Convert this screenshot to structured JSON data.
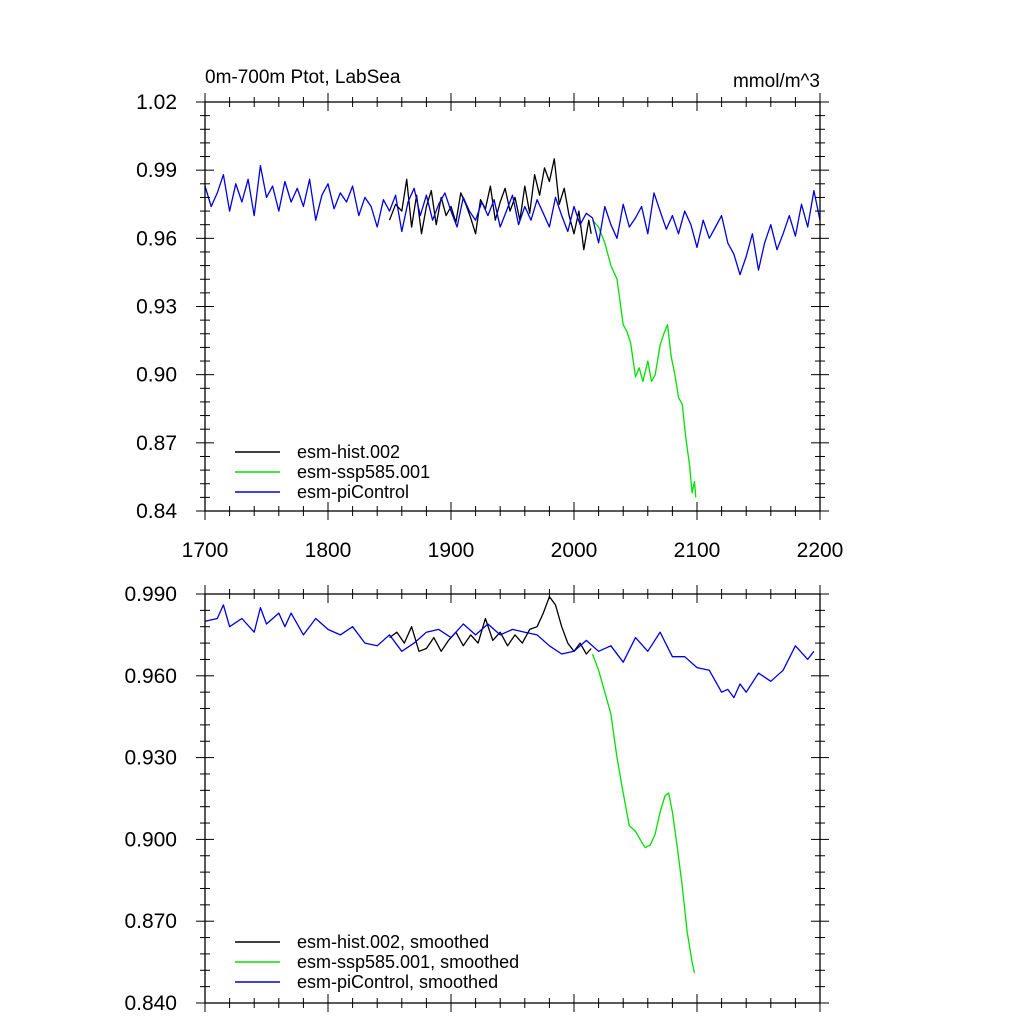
{
  "colors": {
    "hist": "#000000",
    "ssp": "#00e000",
    "pic": "#0000dd",
    "axis": "#000000"
  },
  "chart_data": [
    {
      "type": "line",
      "title": "0m-700m Ptot, LabSea",
      "units": "mmol/m^3",
      "xlim": [
        1700,
        2200
      ],
      "ylim": [
        0.84,
        1.02
      ],
      "xticks": [
        1700,
        1800,
        1900,
        2000,
        2100,
        2200
      ],
      "xtick_labels": [
        "1700",
        "1800",
        "1900",
        "2000",
        "2100",
        "2200"
      ],
      "yticks": [
        0.84,
        0.87,
        0.9,
        0.93,
        0.96,
        0.99,
        1.02
      ],
      "ytick_labels": [
        "0.84",
        "0.87",
        "0.90",
        "0.93",
        "0.96",
        "0.99",
        "1.02"
      ],
      "legend_position": "bottom-left",
      "series": [
        {
          "key": "hist",
          "name": "esm-hist.002",
          "color": "hist",
          "x": [
            1850,
            1855,
            1860,
            1864,
            1868,
            1872,
            1876,
            1880,
            1884,
            1888,
            1892,
            1896,
            1900,
            1904,
            1908,
            1912,
            1916,
            1920,
            1924,
            1928,
            1932,
            1936,
            1940,
            1944,
            1948,
            1952,
            1956,
            1960,
            1964,
            1968,
            1972,
            1976,
            1980,
            1984,
            1988,
            1992,
            1996,
            2000,
            2004,
            2008,
            2012,
            2014
          ],
          "y": [
            0.968,
            0.975,
            0.972,
            0.986,
            0.965,
            0.979,
            0.962,
            0.974,
            0.981,
            0.966,
            0.978,
            0.97,
            0.974,
            0.967,
            0.98,
            0.975,
            0.969,
            0.962,
            0.977,
            0.973,
            0.983,
            0.968,
            0.976,
            0.982,
            0.972,
            0.978,
            0.968,
            0.983,
            0.971,
            0.988,
            0.979,
            0.991,
            0.985,
            0.995,
            0.975,
            0.982,
            0.97,
            0.962,
            0.972,
            0.955,
            0.968,
            0.962
          ]
        },
        {
          "key": "ssp",
          "name": "esm-ssp585.001",
          "color": "ssp",
          "x": [
            2015,
            2020,
            2025,
            2030,
            2035,
            2040,
            2043,
            2046,
            2050,
            2053,
            2056,
            2060,
            2063,
            2066,
            2070,
            2073,
            2076,
            2079,
            2082,
            2085,
            2088,
            2091,
            2094,
            2096,
            2098,
            2099
          ],
          "y": [
            0.968,
            0.965,
            0.958,
            0.948,
            0.942,
            0.922,
            0.919,
            0.914,
            0.899,
            0.903,
            0.897,
            0.906,
            0.897,
            0.9,
            0.913,
            0.918,
            0.922,
            0.908,
            0.9,
            0.89,
            0.887,
            0.872,
            0.86,
            0.848,
            0.853,
            0.846
          ]
        },
        {
          "key": "pic",
          "name": "esm-piControl",
          "color": "pic",
          "x": [
            1700,
            1705,
            1710,
            1715,
            1720,
            1725,
            1730,
            1735,
            1740,
            1745,
            1750,
            1755,
            1760,
            1765,
            1770,
            1775,
            1780,
            1785,
            1790,
            1795,
            1800,
            1805,
            1810,
            1815,
            1820,
            1825,
            1830,
            1835,
            1840,
            1845,
            1850,
            1855,
            1860,
            1865,
            1870,
            1875,
            1880,
            1885,
            1890,
            1895,
            1900,
            1905,
            1910,
            1915,
            1920,
            1925,
            1930,
            1935,
            1940,
            1945,
            1950,
            1955,
            1960,
            1965,
            1970,
            1975,
            1980,
            1985,
            1990,
            1995,
            2000,
            2005,
            2010,
            2015,
            2020,
            2025,
            2030,
            2035,
            2040,
            2045,
            2050,
            2055,
            2060,
            2065,
            2070,
            2075,
            2080,
            2085,
            2090,
            2095,
            2100,
            2105,
            2110,
            2115,
            2120,
            2125,
            2130,
            2135,
            2140,
            2145,
            2150,
            2155,
            2160,
            2165,
            2170,
            2175,
            2180,
            2185,
            2190,
            2195,
            2200
          ],
          "y": [
            0.983,
            0.974,
            0.98,
            0.988,
            0.972,
            0.984,
            0.976,
            0.986,
            0.97,
            0.992,
            0.978,
            0.983,
            0.972,
            0.985,
            0.976,
            0.982,
            0.974,
            0.986,
            0.968,
            0.979,
            0.984,
            0.973,
            0.98,
            0.976,
            0.983,
            0.97,
            0.978,
            0.974,
            0.965,
            0.977,
            0.972,
            0.979,
            0.963,
            0.976,
            0.982,
            0.97,
            0.979,
            0.968,
            0.975,
            0.98,
            0.972,
            0.965,
            0.978,
            0.972,
            0.968,
            0.976,
            0.97,
            0.977,
            0.965,
            0.972,
            0.979,
            0.966,
            0.974,
            0.968,
            0.977,
            0.971,
            0.965,
            0.978,
            0.97,
            0.963,
            0.974,
            0.966,
            0.971,
            0.969,
            0.958,
            0.974,
            0.966,
            0.96,
            0.975,
            0.965,
            0.969,
            0.974,
            0.962,
            0.98,
            0.972,
            0.964,
            0.97,
            0.962,
            0.972,
            0.966,
            0.956,
            0.968,
            0.96,
            0.965,
            0.97,
            0.958,
            0.953,
            0.944,
            0.952,
            0.962,
            0.946,
            0.958,
            0.966,
            0.955,
            0.962,
            0.97,
            0.961,
            0.975,
            0.965,
            0.981,
            0.968
          ]
        }
      ]
    },
    {
      "type": "line",
      "xlim": [
        1700,
        2200
      ],
      "ylim": [
        0.84,
        0.99
      ],
      "xticks": [
        1700,
        1800,
        1900,
        2000,
        2100,
        2200
      ],
      "yticks": [
        0.84,
        0.87,
        0.9,
        0.93,
        0.96,
        0.99
      ],
      "ytick_labels": [
        "0.840",
        "0.870",
        "0.900",
        "0.930",
        "0.960",
        "0.990"
      ],
      "legend_position": "bottom-left",
      "series": [
        {
          "key": "hist",
          "name": "esm-hist.002, smoothed",
          "color": "hist",
          "x": [
            1850,
            1856,
            1862,
            1868,
            1874,
            1880,
            1886,
            1892,
            1898,
            1904,
            1910,
            1916,
            1922,
            1928,
            1934,
            1940,
            1946,
            1952,
            1958,
            1964,
            1970,
            1975,
            1980,
            1985,
            1990,
            1995,
            2000,
            2005,
            2010,
            2014
          ],
          "y": [
            0.974,
            0.976,
            0.972,
            0.978,
            0.969,
            0.97,
            0.974,
            0.969,
            0.973,
            0.976,
            0.971,
            0.975,
            0.972,
            0.981,
            0.973,
            0.976,
            0.971,
            0.975,
            0.972,
            0.977,
            0.978,
            0.983,
            0.989,
            0.986,
            0.978,
            0.972,
            0.969,
            0.972,
            0.968,
            0.97
          ]
        },
        {
          "key": "ssp",
          "name": "esm-ssp585.001, smoothed",
          "color": "ssp",
          "x": [
            2015,
            2020,
            2025,
            2030,
            2035,
            2040,
            2045,
            2050,
            2055,
            2058,
            2062,
            2066,
            2070,
            2074,
            2077,
            2080,
            2084,
            2088,
            2092,
            2096,
            2098
          ],
          "y": [
            0.968,
            0.962,
            0.954,
            0.946,
            0.93,
            0.917,
            0.905,
            0.903,
            0.899,
            0.897,
            0.898,
            0.902,
            0.91,
            0.916,
            0.917,
            0.91,
            0.897,
            0.883,
            0.866,
            0.855,
            0.851
          ]
        },
        {
          "key": "pic",
          "name": "esm-piControl, smoothed",
          "color": "pic",
          "x": [
            1700,
            1710,
            1715,
            1720,
            1730,
            1740,
            1745,
            1750,
            1760,
            1765,
            1770,
            1780,
            1790,
            1800,
            1810,
            1820,
            1830,
            1840,
            1850,
            1860,
            1870,
            1880,
            1890,
            1900,
            1910,
            1920,
            1930,
            1940,
            1950,
            1960,
            1970,
            1980,
            1990,
            2000,
            2010,
            2020,
            2030,
            2040,
            2050,
            2060,
            2070,
            2080,
            2090,
            2100,
            2110,
            2120,
            2125,
            2130,
            2135,
            2140,
            2150,
            2160,
            2170,
            2180,
            2190,
            2195
          ],
          "y": [
            0.98,
            0.981,
            0.986,
            0.978,
            0.981,
            0.976,
            0.985,
            0.979,
            0.983,
            0.978,
            0.983,
            0.975,
            0.981,
            0.977,
            0.975,
            0.978,
            0.972,
            0.971,
            0.975,
            0.969,
            0.972,
            0.976,
            0.977,
            0.974,
            0.979,
            0.975,
            0.979,
            0.975,
            0.977,
            0.976,
            0.975,
            0.971,
            0.968,
            0.969,
            0.973,
            0.969,
            0.971,
            0.965,
            0.974,
            0.969,
            0.976,
            0.967,
            0.967,
            0.963,
            0.962,
            0.954,
            0.955,
            0.952,
            0.957,
            0.954,
            0.961,
            0.958,
            0.962,
            0.971,
            0.966,
            0.969
          ]
        }
      ]
    }
  ]
}
